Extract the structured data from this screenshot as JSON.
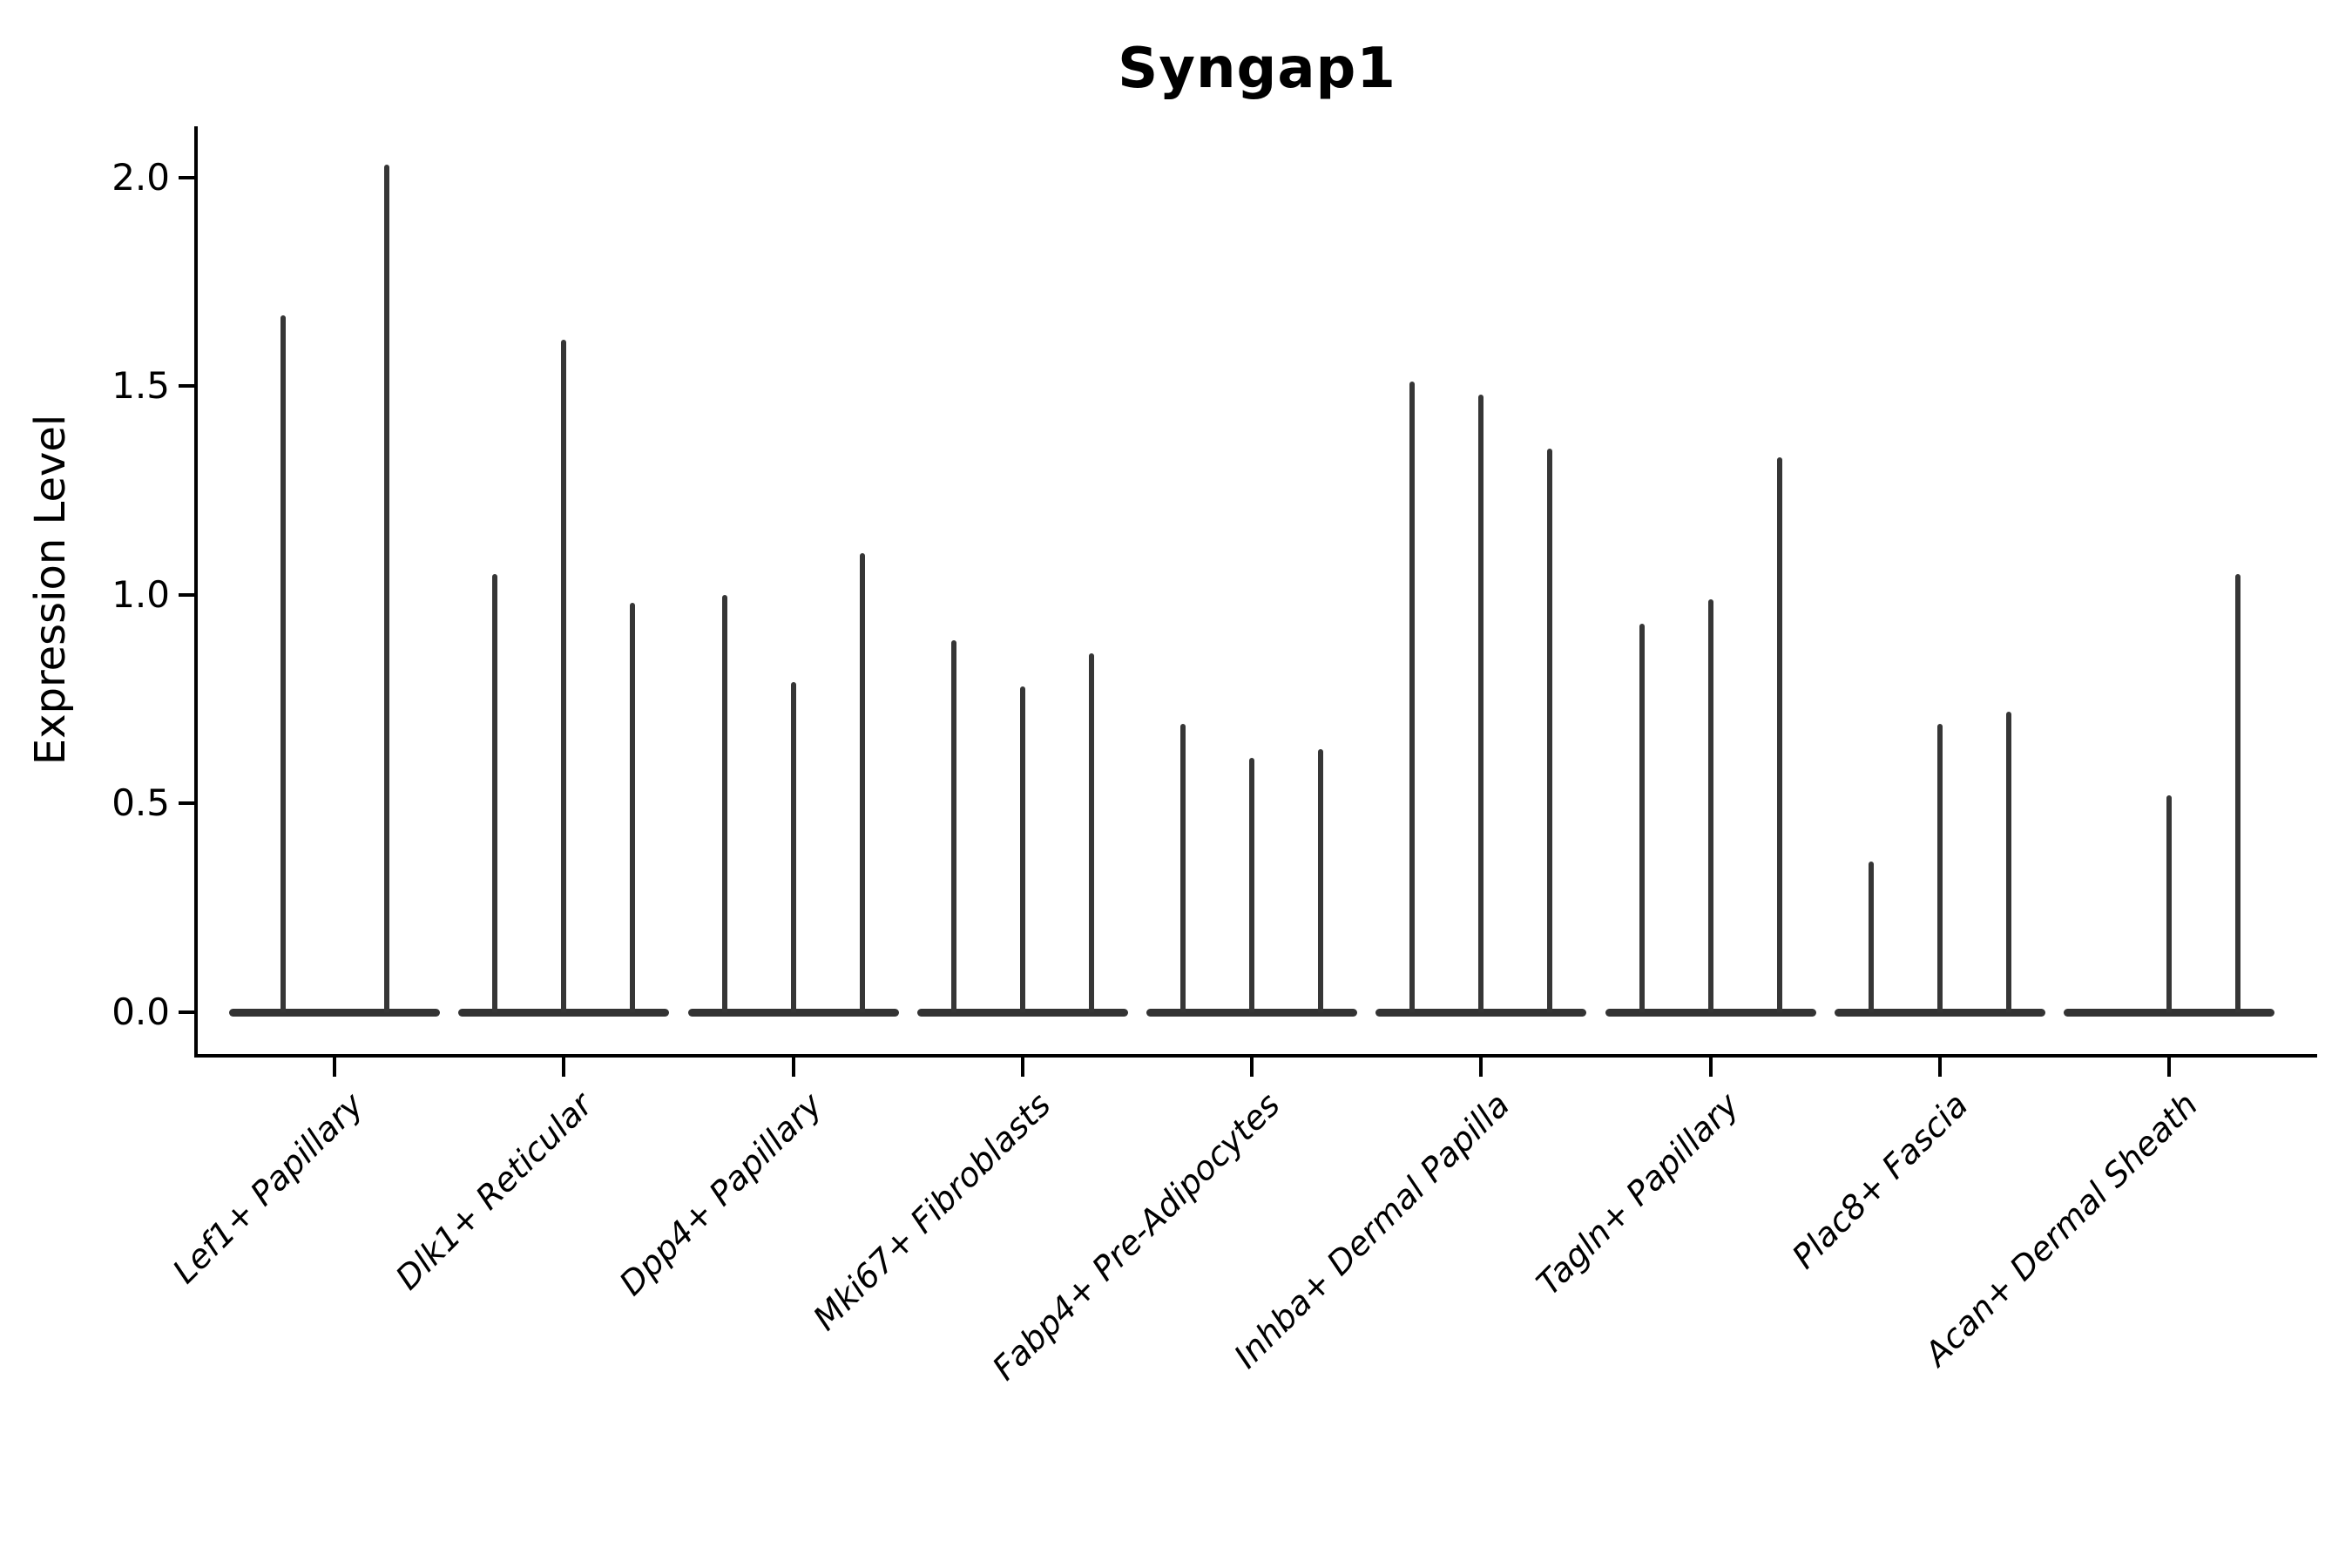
{
  "title": "Syngap1",
  "y_axis": {
    "label": "Expression Level",
    "tick_labels": [
      "0.0",
      "0.5",
      "1.0",
      "1.5",
      "2.0"
    ]
  },
  "colors": {
    "violin": "#363636",
    "axis": "#000000",
    "text": "#000000",
    "background": "#ffffff"
  },
  "chart_data": {
    "type": "violin",
    "title": "Syngap1",
    "xlabel": "",
    "ylabel": "Expression Level",
    "ylim": [
      0,
      2.1
    ],
    "yticks": [
      0.0,
      0.5,
      1.0,
      1.5,
      2.0
    ],
    "grid": false,
    "legend": "none",
    "spines": [
      "left",
      "bottom"
    ],
    "x_tick_rotation_deg": 45,
    "description": "Single-cell expression violin plot; each category shows 2-3 very thin violins (most cells at 0, flat wide base at y=0) whose narrow tails reach the listed maximum expression values.",
    "categories": [
      "Lef1+ Papillary",
      "Dlk1+ Reticular",
      "Dpp4+ Papillary",
      "Mki67+ Fibroblasts",
      "Fabp4+ Pre-Adipocytes",
      "Inhba+ Dermal Papilla",
      "Tagln+ Papillary",
      "Plac8+ Fascia",
      "Acan+ Dermal Sheath"
    ],
    "groups": [
      {
        "category": "Lef1+ Papillary",
        "violin_max_values": [
          1.67,
          2.03
        ]
      },
      {
        "category": "Dlk1+ Reticular",
        "violin_max_values": [
          1.05,
          1.61,
          0.98
        ]
      },
      {
        "category": "Dpp4+ Papillary",
        "violin_max_values": [
          1.0,
          0.79,
          1.1
        ]
      },
      {
        "category": "Mki67+ Fibroblasts",
        "violin_max_values": [
          0.89,
          0.78,
          0.86
        ]
      },
      {
        "category": "Fabp4+ Pre-Adipocytes",
        "violin_max_values": [
          0.69,
          0.61,
          0.63
        ]
      },
      {
        "category": "Inhba+ Dermal Papilla",
        "violin_max_values": [
          1.51,
          1.48,
          1.35
        ]
      },
      {
        "category": "Tagln+ Papillary",
        "violin_max_values": [
          0.93,
          0.99,
          1.33
        ]
      },
      {
        "category": "Plac8+ Fascia",
        "violin_max_values": [
          0.36,
          0.69,
          0.72
        ]
      },
      {
        "category": "Acan+ Dermal Sheath",
        "violin_max_values": [
          0.0,
          0.52,
          1.05
        ]
      }
    ]
  }
}
